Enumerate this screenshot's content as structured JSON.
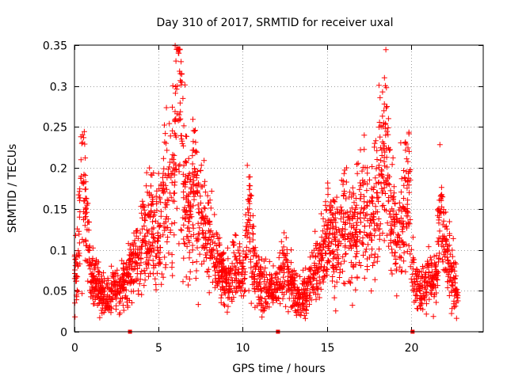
{
  "chart_data": {
    "type": "scatter",
    "title": "Day 310 of 2017, SRMTID for receiver uxal",
    "xlabel": "GPS time / hours",
    "ylabel": "SRMTID / TECUs",
    "xlim": [
      0,
      24.3
    ],
    "ylim": [
      0,
      0.35
    ],
    "x_ticks": [
      0,
      5,
      10,
      15,
      20
    ],
    "x_tick_labels": [
      "0",
      "5",
      "10",
      "15",
      "20"
    ],
    "y_ticks": [
      0,
      0.05,
      0.1,
      0.15,
      0.2,
      0.25,
      0.3,
      0.35
    ],
    "y_tick_labels": [
      "0",
      "0.05",
      "0.1",
      "0.15",
      "0.2",
      "0.25",
      "0.3",
      "0.35"
    ],
    "grid": true,
    "marker": "plus",
    "color": "#ff0000",
    "x_range": [
      0,
      22.8
    ],
    "gap_markers_x": [
      3.3,
      12.1,
      20.1
    ],
    "series": [
      {
        "name": "SRMTID",
        "points": [
          [
            0.2,
            0.08
          ],
          [
            0.3,
            0.14
          ],
          [
            0.4,
            0.19
          ],
          [
            0.6,
            0.16
          ],
          [
            0.8,
            0.1
          ],
          [
            1.0,
            0.07
          ],
          [
            1.3,
            0.06
          ],
          [
            1.6,
            0.05
          ],
          [
            1.9,
            0.04
          ],
          [
            2.2,
            0.05
          ],
          [
            2.6,
            0.05
          ],
          [
            3.0,
            0.06
          ],
          [
            3.4,
            0.08
          ],
          [
            3.8,
            0.09
          ],
          [
            4.2,
            0.11
          ],
          [
            4.5,
            0.14
          ],
          [
            4.8,
            0.11
          ],
          [
            5.1,
            0.13
          ],
          [
            5.3,
            0.18
          ],
          [
            5.6,
            0.16
          ],
          [
            5.9,
            0.2
          ],
          [
            6.0,
            0.24
          ],
          [
            6.1,
            0.3
          ],
          [
            6.2,
            0.34
          ],
          [
            6.3,
            0.26
          ],
          [
            6.5,
            0.18
          ],
          [
            6.8,
            0.14
          ],
          [
            7.1,
            0.18
          ],
          [
            7.4,
            0.15
          ],
          [
            7.8,
            0.12
          ],
          [
            8.2,
            0.1
          ],
          [
            8.6,
            0.08
          ],
          [
            9.0,
            0.06
          ],
          [
            9.5,
            0.08
          ],
          [
            10.0,
            0.07
          ],
          [
            10.4,
            0.15
          ],
          [
            10.7,
            0.07
          ],
          [
            11.0,
            0.06
          ],
          [
            11.5,
            0.05
          ],
          [
            12.0,
            0.06
          ],
          [
            12.5,
            0.08
          ],
          [
            13.0,
            0.05
          ],
          [
            13.4,
            0.04
          ],
          [
            13.8,
            0.05
          ],
          [
            14.2,
            0.07
          ],
          [
            14.7,
            0.09
          ],
          [
            15.2,
            0.12
          ],
          [
            15.6,
            0.1
          ],
          [
            16.0,
            0.14
          ],
          [
            16.4,
            0.12
          ],
          [
            16.8,
            0.13
          ],
          [
            17.2,
            0.15
          ],
          [
            17.6,
            0.12
          ],
          [
            18.0,
            0.17
          ],
          [
            18.3,
            0.19
          ],
          [
            18.5,
            0.24
          ],
          [
            18.8,
            0.13
          ],
          [
            19.2,
            0.11
          ],
          [
            19.6,
            0.15
          ],
          [
            19.9,
            0.17
          ],
          [
            20.1,
            0.07
          ],
          [
            20.5,
            0.05
          ],
          [
            21.0,
            0.06
          ],
          [
            21.5,
            0.07
          ],
          [
            21.8,
            0.16
          ],
          [
            22.0,
            0.1
          ],
          [
            22.4,
            0.08
          ],
          [
            22.7,
            0.05
          ]
        ]
      }
    ]
  }
}
